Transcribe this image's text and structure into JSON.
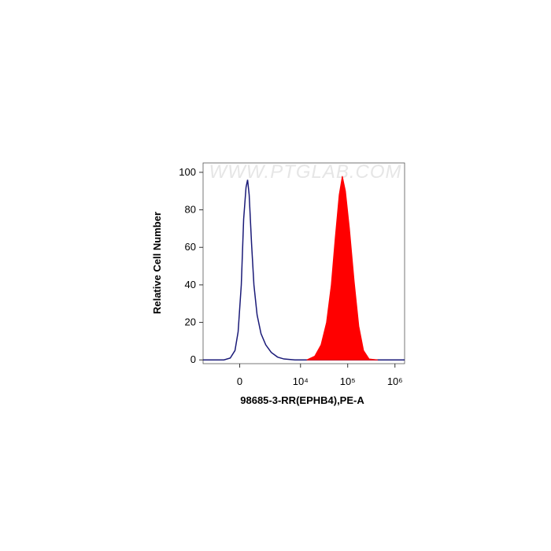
{
  "chart_data": {
    "type": "histogram-overlay",
    "xlabel": "98685-3-RR(EPHB4),PE-A",
    "ylabel": "Relative Cell Number",
    "watermark": "WWW.PTGLAB.COM",
    "xscale": "biexponential",
    "xlim": [
      -3000,
      1600000
    ],
    "xticks": [
      0,
      {
        "value": 10000,
        "label": "10⁴"
      },
      {
        "value": 100000,
        "label": "10⁵"
      },
      {
        "value": 1000000,
        "label": "10⁶"
      }
    ],
    "ylim": [
      -2,
      105
    ],
    "yticks": [
      0,
      20,
      40,
      60,
      80,
      100
    ],
    "series": [
      {
        "color": "#1a1a78",
        "filled": false,
        "x": [
          -3000,
          -877,
          -495,
          -241,
          -80,
          80,
          200,
          324,
          408,
          495,
          632,
          776,
          986,
          1280,
          1700,
          2300,
          3200,
          4410,
          7600,
          1600000
        ],
        "values": [
          0,
          0,
          1,
          5,
          15,
          40,
          75,
          92,
          96,
          88,
          62,
          40,
          24,
          14,
          8,
          4,
          1.5,
          0.5,
          0,
          0
        ]
      },
      {
        "color": "#ff0000",
        "filled": true,
        "x": [
          13600,
          20000,
          27200,
          35600,
          44900,
          54400,
          66000,
          76900,
          89700,
          109000,
          137000,
          172000,
          217000,
          284000,
          434000
        ],
        "values": [
          0,
          2,
          8,
          20,
          40,
          65,
          88,
          98,
          90,
          70,
          42,
          18,
          5,
          0.5,
          0
        ]
      }
    ]
  }
}
